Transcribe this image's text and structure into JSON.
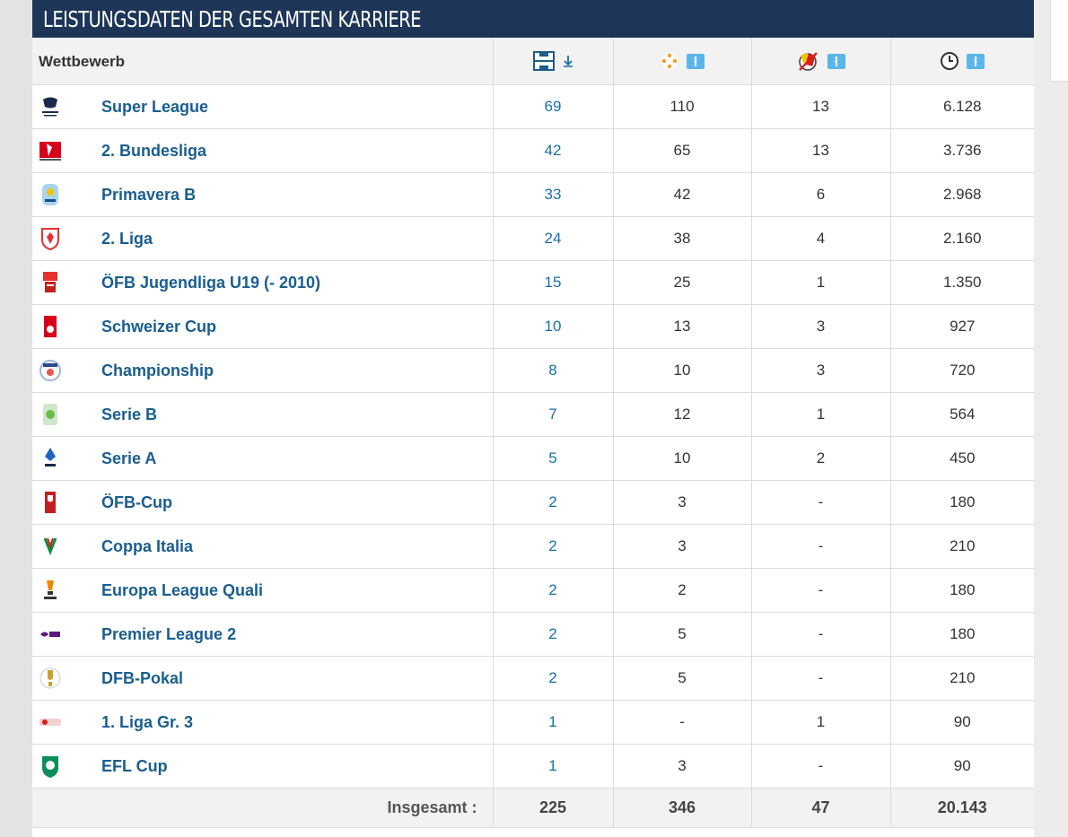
{
  "header": {
    "title": "LEISTUNGSDATEN DER GESAMTEN KARRIERE"
  },
  "columns": {
    "competition": "Wettbewerb",
    "appearances_icon": "pitch-icon",
    "goals_icon": "ball-icon",
    "cards_icon": "cards-icon",
    "minutes_icon": "clock-icon",
    "sort_icon": "sort-icon"
  },
  "colors": {
    "header_bg": "#1d3557",
    "link": "#1a5e8f",
    "sort": "#5bb6e8"
  },
  "rows": [
    {
      "competition": "Super League",
      "apps": "69",
      "goals": "110",
      "cards": "13",
      "minutes": "6.128",
      "logo": "super-league-logo"
    },
    {
      "competition": "2. Bundesliga",
      "apps": "42",
      "goals": "65",
      "cards": "13",
      "minutes": "3.736",
      "logo": "bundesliga-2-logo"
    },
    {
      "competition": "Primavera B",
      "apps": "33",
      "goals": "42",
      "cards": "6",
      "minutes": "2.968",
      "logo": "primavera-b-logo"
    },
    {
      "competition": "2. Liga",
      "apps": "24",
      "goals": "38",
      "cards": "4",
      "minutes": "2.160",
      "logo": "liga-2-logo"
    },
    {
      "competition": "ÖFB Jugendliga U19 (- 2010)",
      "apps": "15",
      "goals": "25",
      "cards": "1",
      "minutes": "1.350",
      "logo": "oefb-jugendliga-logo"
    },
    {
      "competition": "Schweizer Cup",
      "apps": "10",
      "goals": "13",
      "cards": "3",
      "minutes": "927",
      "logo": "schweizer-cup-logo"
    },
    {
      "competition": "Championship",
      "apps": "8",
      "goals": "10",
      "cards": "3",
      "minutes": "720",
      "logo": "championship-logo"
    },
    {
      "competition": "Serie B",
      "apps": "7",
      "goals": "12",
      "cards": "1",
      "minutes": "564",
      "logo": "serie-b-logo"
    },
    {
      "competition": "Serie A",
      "apps": "5",
      "goals": "10",
      "cards": "2",
      "minutes": "450",
      "logo": "serie-a-logo"
    },
    {
      "competition": "ÖFB-Cup",
      "apps": "2",
      "goals": "3",
      "cards": "-",
      "minutes": "180",
      "logo": "oefb-cup-logo"
    },
    {
      "competition": "Coppa Italia",
      "apps": "2",
      "goals": "3",
      "cards": "-",
      "minutes": "210",
      "logo": "coppa-italia-logo"
    },
    {
      "competition": "Europa League Quali",
      "apps": "2",
      "goals": "2",
      "cards": "-",
      "minutes": "180",
      "logo": "europa-league-logo"
    },
    {
      "competition": "Premier League 2",
      "apps": "2",
      "goals": "5",
      "cards": "-",
      "minutes": "180",
      "logo": "premier-league-2-logo"
    },
    {
      "competition": "DFB-Pokal",
      "apps": "2",
      "goals": "5",
      "cards": "-",
      "minutes": "210",
      "logo": "dfb-pokal-logo"
    },
    {
      "competition": "1. Liga Gr. 3",
      "apps": "1",
      "goals": "-",
      "cards": "1",
      "minutes": "90",
      "logo": "liga-1-gr3-logo"
    },
    {
      "competition": "EFL Cup",
      "apps": "1",
      "goals": "3",
      "cards": "-",
      "minutes": "90",
      "logo": "efl-cup-logo"
    }
  ],
  "totals": {
    "label": "Insgesamt :",
    "apps": "225",
    "goals": "346",
    "cards": "47",
    "minutes": "20.143"
  }
}
